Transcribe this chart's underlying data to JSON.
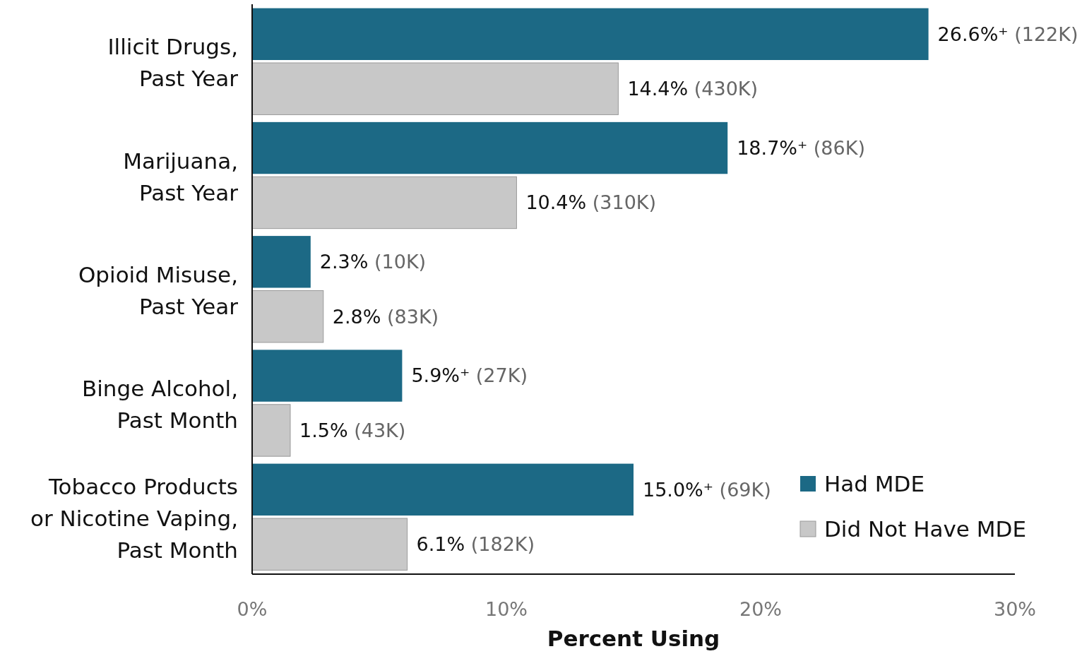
{
  "chart_data": {
    "type": "bar",
    "orientation": "horizontal",
    "xlabel": "Percent Using",
    "categories": [
      "Illicit Drugs,\nPast Year",
      "Marijuana,\nPast Year",
      "Opioid Misuse,\nPast Year",
      "Binge Alcohol,\nPast Month",
      "Tobacco Products\nor Nicotine Vaping,\nPast Month"
    ],
    "series": [
      {
        "name": "Had MDE",
        "color": "#1c6985",
        "values": [
          26.6,
          18.7,
          2.3,
          5.9,
          15.0
        ],
        "value_labels": [
          "26.6%⁺ (122K)",
          "18.7%⁺ (86K)",
          "2.3% (10K)",
          "5.9%⁺ (27K)",
          "15.0%⁺ (69K)"
        ]
      },
      {
        "name": "Did Not Have MDE",
        "color": "#c8c8c8",
        "values": [
          14.4,
          10.4,
          2.8,
          1.5,
          6.1
        ],
        "value_labels": [
          "14.4% (430K)",
          "10.4% (310K)",
          "2.8% (83K)",
          "1.5% (43K)",
          "6.1% (182K)"
        ]
      }
    ],
    "xlim": [
      0,
      30
    ],
    "xticks": [
      {
        "value": 0,
        "label": "0%"
      },
      {
        "value": 10,
        "label": "10%"
      },
      {
        "value": 20,
        "label": "20%"
      },
      {
        "value": 30,
        "label": "30%"
      }
    ],
    "grid": false,
    "legend": "bottom right"
  }
}
